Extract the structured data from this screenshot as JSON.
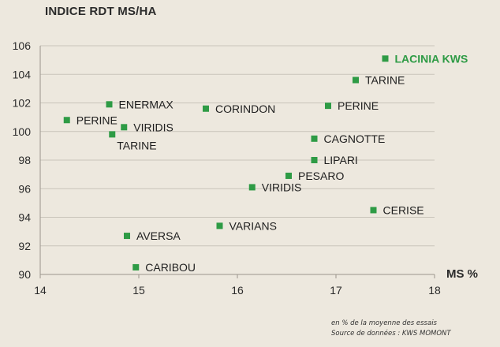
{
  "chart_data": {
    "type": "scatter",
    "title": "",
    "ylabel": "INDICE RDT MS/HA",
    "xlabel": "MS %",
    "xlim": [
      14,
      18
    ],
    "ylim": [
      90,
      106
    ],
    "xticks": [
      14,
      15,
      16,
      17,
      18
    ],
    "yticks": [
      90,
      92,
      94,
      96,
      98,
      100,
      102,
      104,
      106
    ],
    "grid": "horizontal",
    "marker_color": "#2e9b45",
    "highlight_color": "#2e9b45",
    "label_color": "#1e1e1e",
    "points": [
      {
        "label": "LACINIA KWS",
        "x": 17.5,
        "y": 105.1,
        "highlight": true
      },
      {
        "label": "TARINE",
        "x": 17.2,
        "y": 103.6
      },
      {
        "label": "ENERMAX",
        "x": 14.7,
        "y": 101.9
      },
      {
        "label": "CORINDON",
        "x": 15.68,
        "y": 101.6
      },
      {
        "label": "PERINE",
        "x": 16.92,
        "y": 101.8
      },
      {
        "label": "PERINE",
        "x": 14.27,
        "y": 100.8
      },
      {
        "label": "VIRIDIS",
        "x": 14.85,
        "y": 100.3
      },
      {
        "label": "TARINE",
        "x": 14.73,
        "y": 99.8
      },
      {
        "label": "CAGNOTTE",
        "x": 16.78,
        "y": 99.5
      },
      {
        "label": "LIPARI",
        "x": 16.78,
        "y": 98.0
      },
      {
        "label": "PESARO",
        "x": 16.52,
        "y": 96.9
      },
      {
        "label": "VIRIDIS",
        "x": 16.15,
        "y": 96.1
      },
      {
        "label": "CERISE",
        "x": 17.38,
        "y": 94.5
      },
      {
        "label": "VARIANS",
        "x": 15.82,
        "y": 93.4
      },
      {
        "label": "AVERSA",
        "x": 14.88,
        "y": 92.7
      },
      {
        "label": "CARIBOU",
        "x": 14.97,
        "y": 90.5
      }
    ]
  },
  "notes": {
    "line1": "en % de la moyenne des essais",
    "line2": "Source de données : KWS MOMONT"
  }
}
